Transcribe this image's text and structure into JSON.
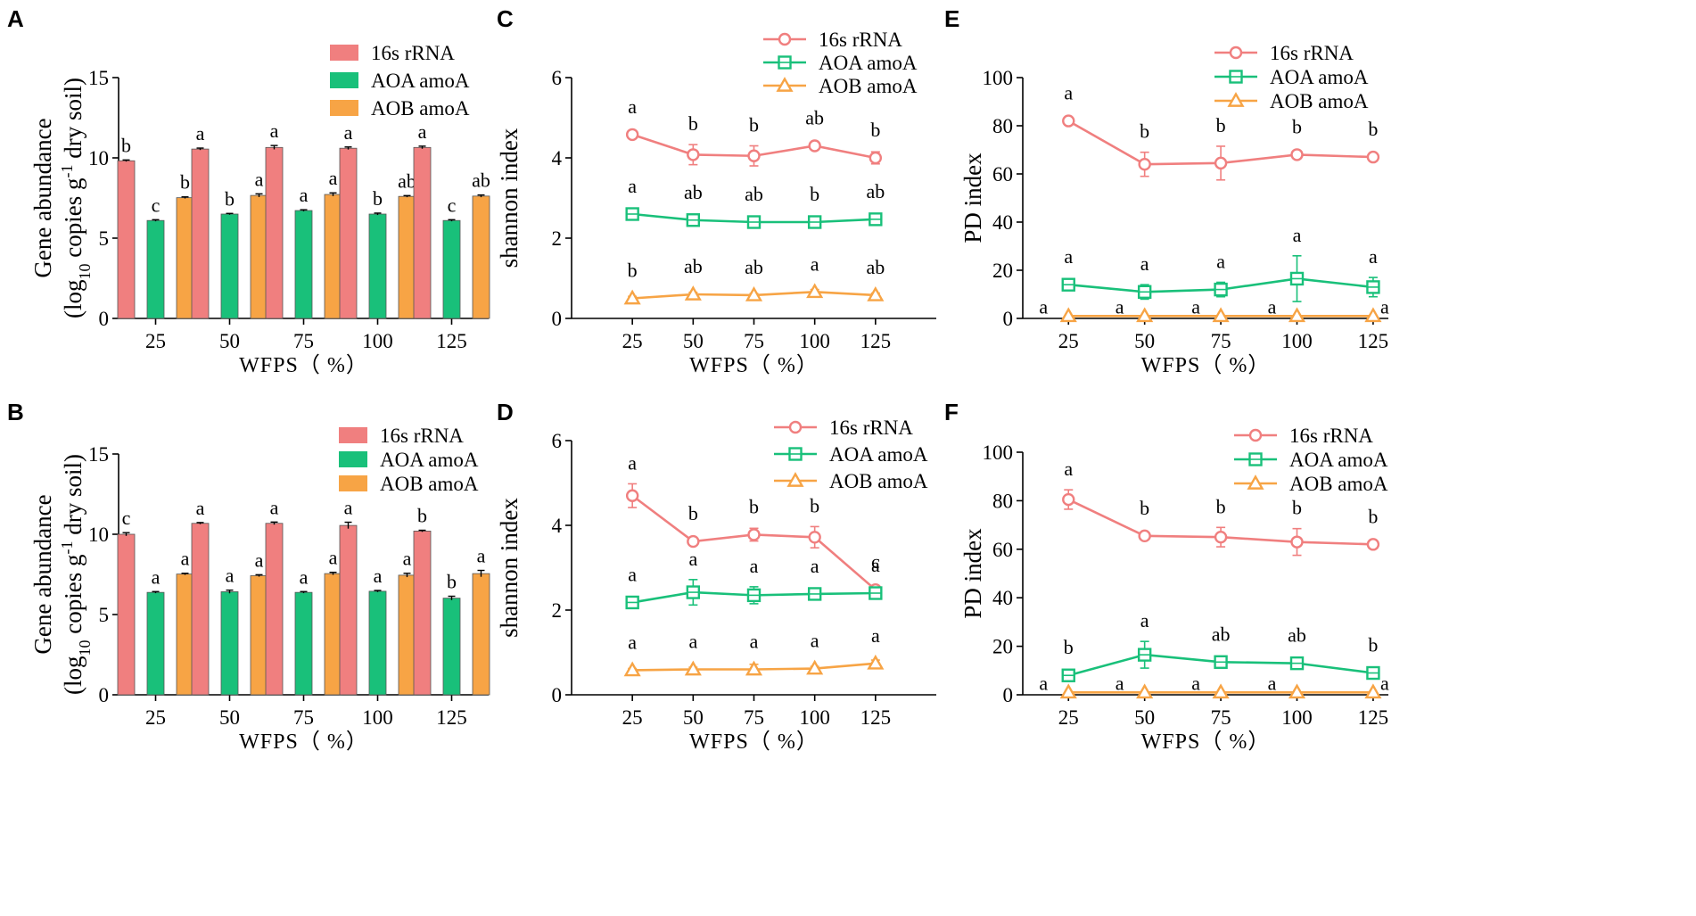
{
  "colors": {
    "rrna": "#f07f7f",
    "aoa": "#19c07a",
    "aob": "#f7a445",
    "err": "#000000"
  },
  "chart_data": [
    {
      "id": "A",
      "panel_label": "A",
      "type": "bar",
      "categories": [
        "25",
        "50",
        "75",
        "100",
        "125"
      ],
      "xlabel": "WFPS（ %）",
      "ylabel_line1": "Gene abundance",
      "ylabel_line2_pre": "(log",
      "ylabel_line2_sub": "10",
      "ylabel_line2_mid": " copies g",
      "ylabel_line2_sup": "-1",
      "ylabel_line2_post": " dry soil)",
      "ylim": [
        0,
        15
      ],
      "yticks": [
        "0",
        "5",
        "10",
        "15"
      ],
      "ytick_values": [
        0,
        5,
        10,
        15
      ],
      "legend_position": "top-right",
      "series": [
        {
          "name": "16s rRNA",
          "key": "rrna",
          "values": [
            9.82,
            10.55,
            10.65,
            10.6,
            10.65
          ],
          "errors": [
            0.05,
            0.06,
            0.12,
            0.08,
            0.08
          ],
          "letters": [
            "b",
            "a",
            "a",
            "a",
            "a"
          ]
        },
        {
          "name": "AOA amoA",
          "key": "aoa",
          "values": [
            6.1,
            6.5,
            6.72,
            6.5,
            6.1
          ],
          "errors": [
            0.05,
            0.04,
            0.05,
            0.06,
            0.05
          ],
          "letters": [
            "c",
            "b",
            "a",
            "b",
            "c"
          ]
        },
        {
          "name": "AOB amoA",
          "key": "aob",
          "values": [
            7.52,
            7.66,
            7.72,
            7.6,
            7.62
          ],
          "errors": [
            0.05,
            0.1,
            0.1,
            0.05,
            0.07
          ],
          "letters": [
            "b",
            "a",
            "a",
            "ab",
            "ab"
          ]
        }
      ]
    },
    {
      "id": "B",
      "panel_label": "B",
      "type": "bar",
      "categories": [
        "25",
        "50",
        "75",
        "100",
        "125"
      ],
      "xlabel": "WFPS（ %）",
      "ylabel_line1": "Gene abundance",
      "ylabel_line2_pre": "(log",
      "ylabel_line2_sub": "10",
      "ylabel_line2_mid": " copies g",
      "ylabel_line2_sup": "-1",
      "ylabel_line2_post": " dry soil)",
      "ylim": [
        0,
        15
      ],
      "yticks": [
        "0",
        "5",
        "10",
        "15"
      ],
      "ytick_values": [
        0,
        5,
        10,
        15
      ],
      "legend_position": "top-right",
      "series": [
        {
          "name": "16s rRNA",
          "key": "rrna",
          "values": [
            10.0,
            10.68,
            10.68,
            10.55,
            10.2
          ],
          "errors": [
            0.1,
            0.05,
            0.08,
            0.2,
            0.05
          ],
          "letters": [
            "c",
            "a",
            "a",
            "a",
            "b"
          ]
        },
        {
          "name": "AOA amoA",
          "key": "aoa",
          "values": [
            6.38,
            6.42,
            6.38,
            6.45,
            6.02
          ],
          "errors": [
            0.05,
            0.1,
            0.05,
            0.05,
            0.12
          ],
          "letters": [
            "a",
            "a",
            "a",
            "a",
            "b"
          ]
        },
        {
          "name": "AOB amoA",
          "key": "aob",
          "values": [
            7.52,
            7.42,
            7.55,
            7.45,
            7.55
          ],
          "errors": [
            0.05,
            0.06,
            0.08,
            0.12,
            0.2
          ],
          "letters": [
            "a",
            "a",
            "a",
            "a",
            "a"
          ]
        }
      ]
    },
    {
      "id": "C",
      "panel_label": "C",
      "type": "line",
      "x": [
        25,
        50,
        75,
        100,
        125
      ],
      "xlim": [
        0,
        150
      ],
      "xticks": [
        "25",
        "50",
        "75",
        "100",
        "125"
      ],
      "xlabel": "WFPS（ %）",
      "ylabel": "shannon index",
      "ylim": [
        0,
        6
      ],
      "yticks": [
        "0",
        "2",
        "4",
        "6"
      ],
      "ytick_values": [
        0,
        2,
        4,
        6
      ],
      "legend_position": "top-right",
      "series": [
        {
          "name": "16s rRNA",
          "key": "rrna",
          "marker": "circle",
          "values": [
            4.58,
            4.08,
            4.05,
            4.3,
            4.0
          ],
          "errors": [
            0.05,
            0.25,
            0.25,
            0.08,
            0.15
          ],
          "letters": [
            "a",
            "b",
            "b",
            "ab",
            "b"
          ]
        },
        {
          "name": "AOA amoA",
          "key": "aoa",
          "marker": "square",
          "values": [
            2.6,
            2.45,
            2.4,
            2.4,
            2.47
          ],
          "errors": [
            0.08,
            0.08,
            0.05,
            0.05,
            0.12
          ],
          "letters": [
            "a",
            "ab",
            "ab",
            "b",
            "ab"
          ]
        },
        {
          "name": "AOB amoA",
          "key": "aob",
          "marker": "triangle",
          "values": [
            0.5,
            0.6,
            0.58,
            0.66,
            0.58
          ],
          "errors": [
            0.05,
            0.05,
            0.04,
            0.06,
            0.05
          ],
          "letters": [
            "b",
            "ab",
            "ab",
            "a",
            "ab"
          ]
        }
      ]
    },
    {
      "id": "D",
      "panel_label": "D",
      "type": "line",
      "x": [
        25,
        50,
        75,
        100,
        125
      ],
      "xlim": [
        0,
        150
      ],
      "xticks": [
        "25",
        "50",
        "75",
        "100",
        "125"
      ],
      "xlabel": "WFPS（ %）",
      "ylabel": "shannon index",
      "ylim": [
        0,
        6
      ],
      "yticks": [
        "0",
        "2",
        "4",
        "6"
      ],
      "ytick_values": [
        0,
        2,
        4,
        6
      ],
      "legend_position": "top-right",
      "series": [
        {
          "name": "16s rRNA",
          "key": "rrna",
          "marker": "circle",
          "values": [
            4.7,
            3.62,
            3.78,
            3.72,
            2.48
          ],
          "errors": [
            0.28,
            0.08,
            0.15,
            0.25,
            0.08
          ],
          "letters": [
            "a",
            "b",
            "b",
            "b",
            "c"
          ]
        },
        {
          "name": "AOA amoA",
          "key": "aoa",
          "marker": "square",
          "values": [
            2.18,
            2.42,
            2.35,
            2.38,
            2.4
          ],
          "errors": [
            0.06,
            0.3,
            0.2,
            0.08,
            0.08
          ],
          "letters": [
            "a",
            "a",
            "a",
            "a",
            "a"
          ]
        },
        {
          "name": "AOB amoA",
          "key": "aob",
          "marker": "triangle",
          "values": [
            0.58,
            0.6,
            0.6,
            0.62,
            0.74
          ],
          "errors": [
            0.04,
            0.05,
            0.12,
            0.05,
            0.08
          ],
          "letters": [
            "a",
            "a",
            "a",
            "a",
            "a"
          ]
        }
      ]
    },
    {
      "id": "E",
      "panel_label": "E",
      "type": "line",
      "x": [
        25,
        50,
        75,
        100,
        125
      ],
      "xlim": [
        10,
        130
      ],
      "xticks": [
        "25",
        "50",
        "75",
        "100",
        "125"
      ],
      "xlabel": "WFPS（ %）",
      "ylabel": "PD index",
      "ylim": [
        0,
        100
      ],
      "yticks": [
        "0",
        "20",
        "40",
        "60",
        "80",
        "100"
      ],
      "ytick_values": [
        0,
        20,
        40,
        60,
        80,
        100
      ],
      "legend_position": "top-right",
      "series": [
        {
          "name": "16s rRNA",
          "key": "rrna",
          "marker": "circle",
          "values": [
            82,
            64,
            64.5,
            68,
            67
          ],
          "errors": [
            1,
            5,
            7,
            1.5,
            1
          ],
          "letters": [
            "a",
            "b",
            "b",
            "b",
            "b"
          ]
        },
        {
          "name": "AOA amoA",
          "key": "aoa",
          "marker": "square",
          "values": [
            14,
            11,
            12,
            16.5,
            13
          ],
          "errors": [
            1.5,
            3,
            3,
            9.5,
            4
          ],
          "letters": [
            "a",
            "a",
            "a",
            "a",
            "a"
          ]
        },
        {
          "name": "AOB amoA",
          "key": "aob",
          "marker": "triangle",
          "values": [
            1,
            1,
            1,
            1,
            1
          ],
          "errors": [
            0,
            0,
            0,
            0,
            0
          ],
          "letters": [
            "a",
            "a",
            "a",
            "a",
            "a"
          ]
        }
      ]
    },
    {
      "id": "F",
      "panel_label": "F",
      "type": "line",
      "x": [
        25,
        50,
        75,
        100,
        125
      ],
      "xlim": [
        10,
        130
      ],
      "xticks": [
        "25",
        "50",
        "75",
        "100",
        "125"
      ],
      "xlabel": "WFPS（ %）",
      "ylabel": "PD index",
      "ylim": [
        0,
        100
      ],
      "yticks": [
        "0",
        "20",
        "40",
        "60",
        "80",
        "100"
      ],
      "ytick_values": [
        0,
        20,
        40,
        60,
        80,
        100
      ],
      "legend_position": "top-right",
      "series": [
        {
          "name": "16s rRNA",
          "key": "rrna",
          "marker": "circle",
          "values": [
            80.5,
            65.5,
            65,
            63,
            62
          ],
          "errors": [
            4,
            1,
            4,
            5.5,
            1
          ],
          "letters": [
            "a",
            "b",
            "b",
            "b",
            "b"
          ]
        },
        {
          "name": "AOA amoA",
          "key": "aoa",
          "marker": "square",
          "values": [
            8,
            16.5,
            13.5,
            13,
            9
          ],
          "errors": [
            1.5,
            5.5,
            2,
            2,
            1.5
          ],
          "letters": [
            "b",
            "a",
            "ab",
            "ab",
            "b"
          ]
        },
        {
          "name": "AOB amoA",
          "key": "aob",
          "marker": "triangle",
          "values": [
            1,
            1,
            1,
            1,
            1
          ],
          "errors": [
            0,
            0,
            0,
            0,
            0
          ],
          "letters": [
            "a",
            "a",
            "a",
            "a",
            "a"
          ]
        }
      ]
    }
  ]
}
